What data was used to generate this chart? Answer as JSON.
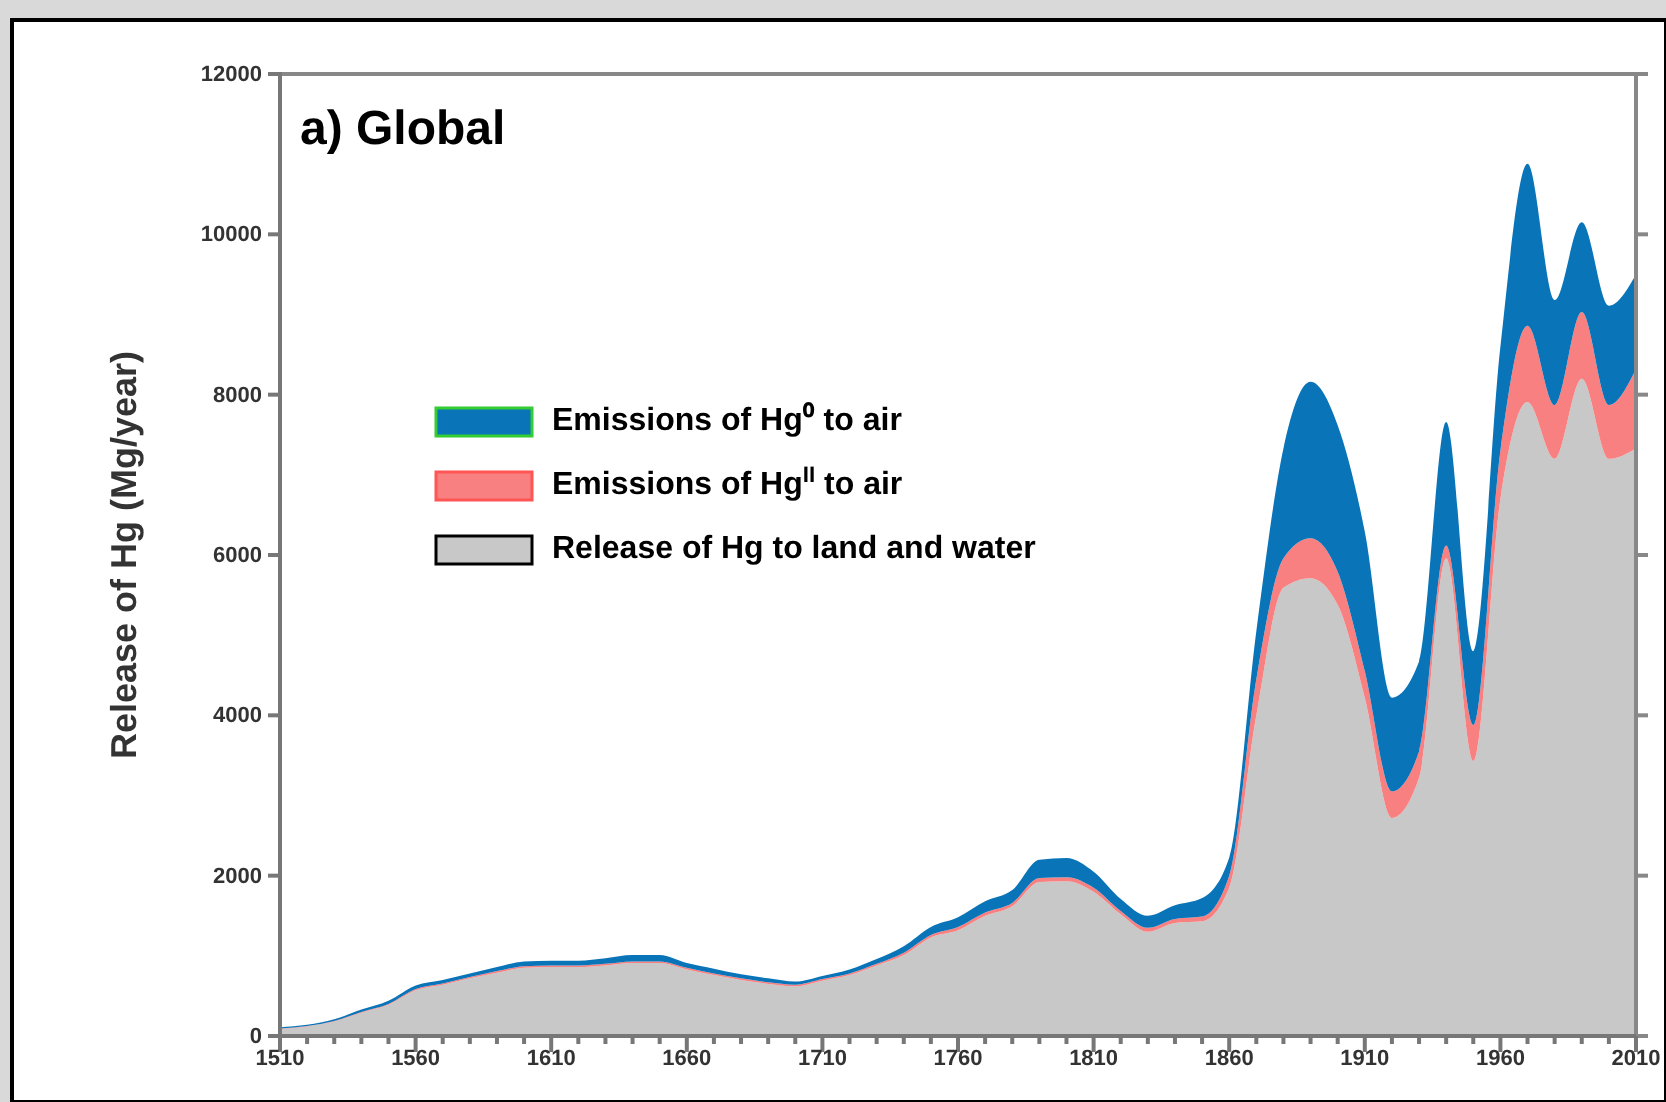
{
  "chart_data": {
    "type": "area",
    "stacked": true,
    "title": "a) Global",
    "ylabel": "Release of Hg (Mg/year)",
    "x": [
      1510,
      1520,
      1530,
      1540,
      1550,
      1560,
      1570,
      1580,
      1590,
      1600,
      1610,
      1620,
      1630,
      1640,
      1650,
      1660,
      1670,
      1680,
      1690,
      1700,
      1710,
      1720,
      1730,
      1740,
      1750,
      1760,
      1770,
      1780,
      1790,
      1800,
      1810,
      1820,
      1830,
      1840,
      1850,
      1860,
      1870,
      1880,
      1890,
      1900,
      1910,
      1920,
      1930,
      1940,
      1950,
      1960,
      1970,
      1980,
      1990,
      2000,
      2010
    ],
    "series": [
      {
        "name": "Release of Hg to land and water",
        "color": "#c8c8c8",
        "values": [
          90,
          120,
          180,
          290,
          390,
          570,
          640,
          720,
          790,
          850,
          860,
          860,
          880,
          910,
          910,
          830,
          760,
          700,
          650,
          620,
          690,
          760,
          880,
          1010,
          1230,
          1320,
          1500,
          1620,
          1920,
          1930,
          1800,
          1520,
          1300,
          1410,
          1430,
          1850,
          4000,
          5590,
          5710,
          5380,
          4220,
          2720,
          3220,
          5960,
          3430,
          6700,
          7910,
          7200,
          8200,
          7200,
          7330
        ]
      },
      {
        "name": "Emissions of Hg$^{II}$ to air",
        "color": "#f88080",
        "values": [
          5,
          5,
          8,
          10,
          10,
          15,
          15,
          15,
          20,
          20,
          20,
          20,
          20,
          20,
          20,
          20,
          20,
          20,
          20,
          20,
          20,
          20,
          20,
          30,
          30,
          40,
          40,
          40,
          50,
          50,
          50,
          40,
          50,
          50,
          60,
          150,
          450,
          370,
          500,
          410,
          330,
          330,
          330,
          160,
          450,
          600,
          950,
          670,
          830,
          670,
          990
        ]
      },
      {
        "name": "Emissions of Hg⁰ to air",
        "color": "#0a74b8",
        "values": [
          15,
          15,
          20,
          30,
          40,
          45,
          45,
          45,
          50,
          60,
          60,
          60,
          70,
          80,
          80,
          60,
          60,
          50,
          50,
          40,
          40,
          50,
          60,
          80,
          100,
          120,
          140,
          160,
          230,
          240,
          200,
          150,
          150,
          170,
          230,
          225,
          600,
          1370,
          1950,
          1830,
          1740,
          1170,
          1120,
          1540,
          920,
          1300,
          2020,
          1310,
          1120,
          1240,
          1180
        ]
      }
    ],
    "xlim": [
      1510,
      2010
    ],
    "xticks": [
      1510,
      {
        "value": 1520,
        "label": null
      },
      {
        "value": 1530,
        "label": null
      },
      {
        "value": 1540,
        "label": null
      },
      {
        "value": 1550,
        "label": null
      },
      1560,
      {
        "value": 1570,
        "label": null
      },
      {
        "value": 1580,
        "label": null
      },
      {
        "value": 1590,
        "label": null
      },
      {
        "value": 1600,
        "label": null
      },
      1610,
      {
        "value": 1620,
        "label": null
      },
      {
        "value": 1630,
        "label": null
      },
      {
        "value": 1640,
        "label": null
      },
      {
        "value": 1650,
        "label": null
      },
      1660,
      {
        "value": 1670,
        "label": null
      },
      {
        "value": 1680,
        "label": null
      },
      {
        "value": 1690,
        "label": null
      },
      {
        "value": 1700,
        "label": null
      },
      1710,
      {
        "value": 1720,
        "label": null
      },
      {
        "value": 1730,
        "label": null
      },
      {
        "value": 1740,
        "label": null
      },
      {
        "value": 1750,
        "label": null
      },
      1760,
      {
        "value": 1770,
        "label": null
      },
      {
        "value": 1780,
        "label": null
      },
      {
        "value": 1790,
        "label": null
      },
      {
        "value": 1800,
        "label": null
      },
      1810,
      {
        "value": 1820,
        "label": null
      },
      {
        "value": 1830,
        "label": null
      },
      {
        "value": 1840,
        "label": null
      },
      {
        "value": 1850,
        "label": null
      },
      1860,
      {
        "value": 1870,
        "label": null
      },
      {
        "value": 1880,
        "label": null
      },
      {
        "value": 1890,
        "label": null
      },
      {
        "value": 1900,
        "label": null
      },
      1910,
      {
        "value": 1920,
        "label": null
      },
      {
        "value": 1930,
        "label": null
      },
      {
        "value": 1940,
        "label": null
      },
      {
        "value": 1950,
        "label": null
      },
      1960,
      {
        "value": 1970,
        "label": null
      },
      {
        "value": 1980,
        "label": null
      },
      {
        "value": 1990,
        "label": null
      },
      {
        "value": 2000,
        "label": null
      },
      2010
    ],
    "ylim": [
      0,
      12000
    ],
    "yticks": [
      0,
      2000,
      4000,
      6000,
      8000,
      10000,
      12000
    ],
    "legend": "left",
    "grid": false
  }
}
